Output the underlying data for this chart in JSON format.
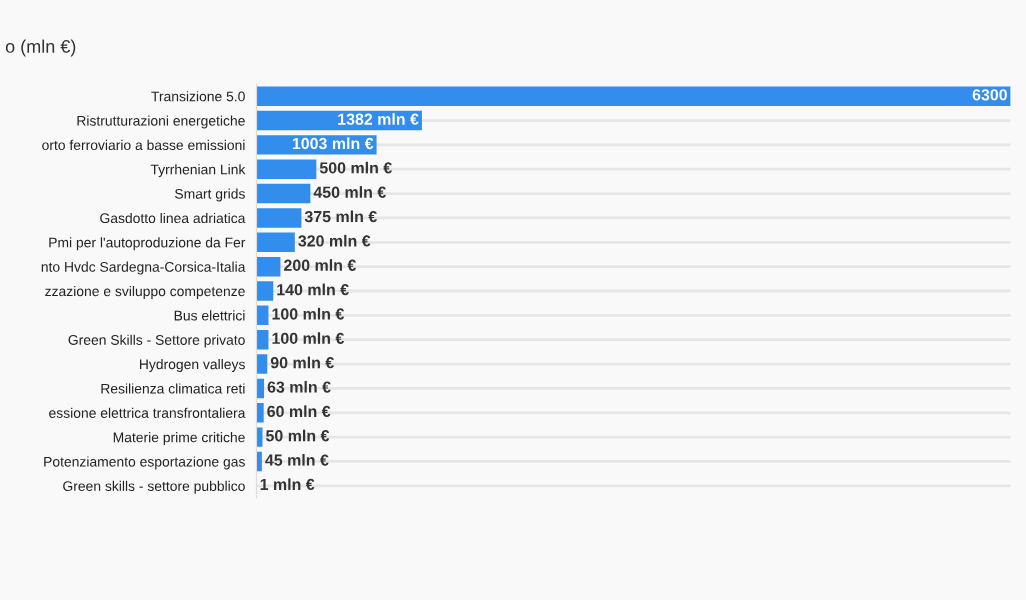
{
  "chart_data": {
    "type": "bar",
    "orientation": "horizontal",
    "title": "o (mln €)",
    "categories": [
      "Transizione 5.0",
      "Ristrutturazioni energetiche",
      "orto ferroviario a basse emissioni",
      "Tyrrhenian Link",
      "Smart grids",
      "Gasdotto linea adriatica",
      "Pmi per l'autoproduzione da Fer",
      "nto Hvdc Sardegna-Corsica-Italia",
      "zzazione e sviluppo competenze",
      "Bus elettrici",
      "Green Skills - Settore privato",
      "Hydrogen valleys",
      "Resilienza climatica reti",
      "essione elettrica transfrontaliera",
      "Materie prime critiche",
      "Potenziamento esportazione gas",
      "Green skills - settore pubblico"
    ],
    "values": [
      6300,
      1382,
      1003,
      500,
      450,
      375,
      320,
      200,
      140,
      100,
      100,
      90,
      63,
      60,
      50,
      45,
      1
    ],
    "value_labels": [
      "6300",
      "1382 mln €",
      "1003 mln €",
      "500 mln €",
      "450 mln €",
      "375 mln €",
      "320 mln €",
      "200 mln €",
      "140 mln €",
      "100 mln €",
      "100 mln €",
      "90 mln €",
      "63 mln €",
      "60 mln €",
      "50 mln €",
      "45 mln €",
      "1 mln €"
    ],
    "color": "#338ded",
    "grid": "y"
  }
}
